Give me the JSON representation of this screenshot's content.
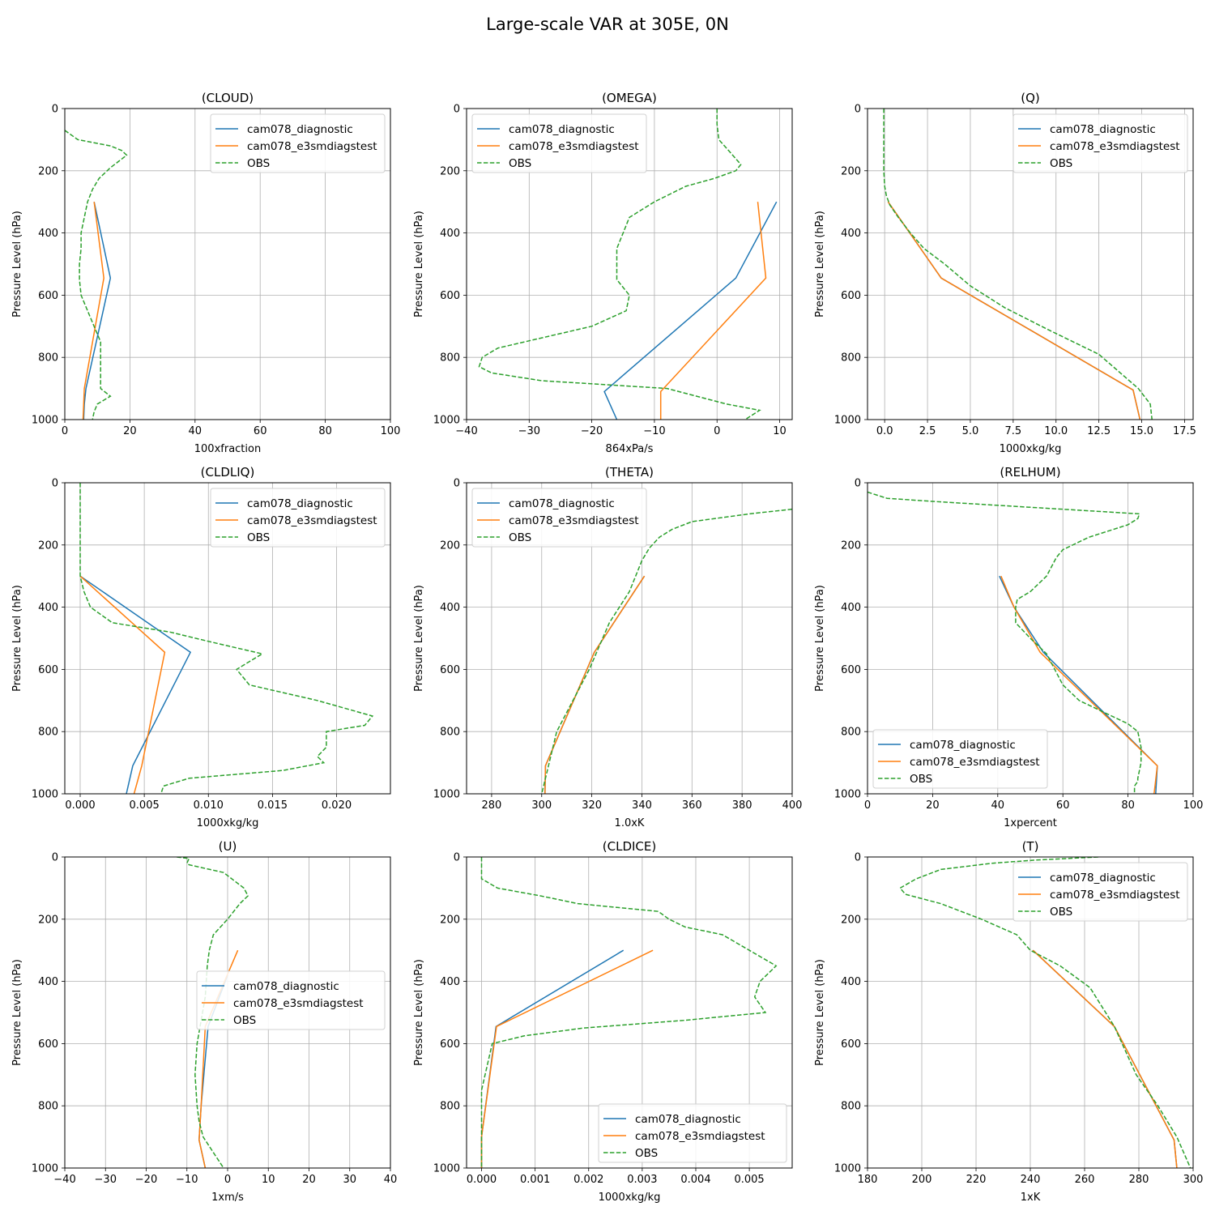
{
  "figure": {
    "title": "Large-scale VAR at 305E, 0N"
  },
  "colors": {
    "diag": "#1f77b4",
    "e3sm": "#ff7f0e",
    "obs": "#2ca02c"
  },
  "chart_data": [
    {
      "type": "line",
      "title": "(CLOUD)",
      "xlabel": "100xfraction",
      "ylabel": "Pressure Level (hPa)",
      "xlim": [
        0,
        100
      ],
      "ylim": [
        1000,
        0
      ],
      "xticks": [
        0,
        20,
        40,
        60,
        80,
        100
      ],
      "xtick_labels": [
        "0",
        "20",
        "40",
        "60",
        "80",
        "100"
      ],
      "yticks": [
        0,
        200,
        400,
        600,
        800,
        1000
      ],
      "grid": true,
      "legend": "upper right",
      "series": [
        {
          "name": "cam078_diagnostic",
          "color": "diag",
          "dashed": false,
          "x": [
            9,
            14,
            6.5,
            6,
            5.8
          ],
          "y": [
            300,
            545,
            900,
            950,
            1000
          ]
        },
        {
          "name": "cam078_e3smdiagstest",
          "color": "e3sm",
          "dashed": false,
          "x": [
            9,
            12,
            6,
            5.8,
            5.6
          ],
          "y": [
            300,
            545,
            900,
            950,
            1000
          ]
        },
        {
          "name": "OBS",
          "color": "obs",
          "dashed": true,
          "x": [
            0,
            4,
            14,
            17.5,
            19,
            14,
            10.5,
            8.5,
            7,
            6,
            5,
            5,
            4.5,
            4.5,
            5,
            7,
            11,
            11,
            11,
            14,
            10,
            9,
            8.5
          ],
          "y": [
            70,
            100,
            120,
            135,
            150,
            190,
            225,
            260,
            300,
            350,
            400,
            450,
            500,
            550,
            600,
            650,
            750,
            800,
            900,
            925,
            950,
            975,
            1000
          ]
        }
      ]
    },
    {
      "type": "line",
      "title": "(OMEGA)",
      "xlabel": "864xPa/s",
      "ylabel": "Pressure Level (hPa)",
      "xlim": [
        -40,
        12
      ],
      "ylim": [
        1000,
        0
      ],
      "xticks": [
        -40,
        -30,
        -20,
        -10,
        0,
        10
      ],
      "xtick_labels": [
        "−40",
        "−30",
        "−20",
        "−10",
        "0",
        "10"
      ],
      "yticks": [
        0,
        200,
        400,
        600,
        800,
        1000
      ],
      "grid": true,
      "legend": "upper left",
      "series": [
        {
          "name": "cam078_diagnostic",
          "color": "diag",
          "dashed": false,
          "x": [
            9.5,
            3,
            -18,
            -16
          ],
          "y": [
            300,
            545,
            910,
            1000
          ]
        },
        {
          "name": "cam078_e3smdiagstest",
          "color": "e3sm",
          "dashed": false,
          "x": [
            6.5,
            7.8,
            -9,
            -9
          ],
          "y": [
            300,
            545,
            910,
            1000
          ]
        },
        {
          "name": "OBS",
          "color": "obs",
          "dashed": true,
          "x": [
            0,
            0,
            0.3,
            2.5,
            3.8,
            3,
            -0.5,
            -5,
            -10,
            -14,
            -15,
            -16,
            -16,
            -16,
            -14,
            -14.5,
            -20,
            -35,
            -37.5,
            -38,
            -36,
            -28,
            -8,
            1.5,
            6.8,
            4.5
          ],
          "y": [
            0,
            50,
            100,
            150,
            180,
            200,
            225,
            250,
            300,
            350,
            400,
            450,
            500,
            550,
            600,
            650,
            700,
            770,
            800,
            830,
            850,
            875,
            900,
            950,
            970,
            1000
          ]
        }
      ]
    },
    {
      "type": "line",
      "title": "(Q)",
      "xlabel": "1000xkg/kg",
      "ylabel": "Pressure Level (hPa)",
      "xlim": [
        -1,
        18
      ],
      "ylim": [
        1000,
        0
      ],
      "xticks": [
        0,
        2.5,
        5,
        7.5,
        10,
        12.5,
        15,
        17.5
      ],
      "xtick_labels": [
        "0.0",
        "2.5",
        "5.0",
        "7.5",
        "10.0",
        "12.5",
        "15.0",
        "17.5"
      ],
      "yticks": [
        0,
        200,
        400,
        600,
        800,
        1000
      ],
      "grid": true,
      "legend": "upper right",
      "series": [
        {
          "name": "cam078_diagnostic",
          "color": "diag",
          "dashed": false,
          "x": [
            0.2,
            3.3,
            14.5,
            14.9
          ],
          "y": [
            300,
            545,
            905,
            1000
          ]
        },
        {
          "name": "cam078_e3smdiagstest",
          "color": "e3sm",
          "dashed": false,
          "x": [
            0.2,
            3.3,
            14.5,
            14.9
          ],
          "y": [
            300,
            545,
            905,
            1000
          ]
        },
        {
          "name": "OBS",
          "color": "obs",
          "dashed": true,
          "x": [
            -0.05,
            -0.05,
            -0.05,
            0,
            0.1,
            0.3,
            0.8,
            1.5,
            2.3,
            3.5,
            5,
            7,
            9.5,
            12.5,
            14.8,
            15.5,
            15.6
          ],
          "y": [
            0,
            100,
            200,
            250,
            280,
            310,
            350,
            400,
            450,
            500,
            570,
            640,
            710,
            790,
            900,
            950,
            1000
          ]
        }
      ]
    },
    {
      "type": "line",
      "title": "(CLDLIQ)",
      "xlabel": "1000xkg/kg",
      "ylabel": "Pressure Level (hPa)",
      "xlim": [
        -0.0012,
        0.0242
      ],
      "ylim": [
        1000,
        0
      ],
      "xticks": [
        0,
        0.005,
        0.01,
        0.015,
        0.02
      ],
      "xtick_labels": [
        "0.000",
        "0.005",
        "0.010",
        "0.015",
        "0.020"
      ],
      "yticks": [
        0,
        200,
        400,
        600,
        800,
        1000
      ],
      "grid": true,
      "legend": "upper right",
      "series": [
        {
          "name": "cam078_diagnostic",
          "color": "diag",
          "dashed": false,
          "x": [
            0,
            0.0086,
            0.0041,
            0.0036
          ],
          "y": [
            300,
            545,
            910,
            1000
          ]
        },
        {
          "name": "cam078_e3smdiagstest",
          "color": "e3sm",
          "dashed": false,
          "x": [
            0,
            0.0066,
            0.0048,
            0.0042
          ],
          "y": [
            300,
            545,
            910,
            1000
          ]
        },
        {
          "name": "OBS",
          "color": "obs",
          "dashed": true,
          "x": [
            0,
            0,
            0,
            0,
            0.0003,
            0.0008,
            0.0025,
            0.007,
            0.01,
            0.0142,
            0.0122,
            0.0132,
            0.0185,
            0.0228,
            0.0222,
            0.0192,
            0.0192,
            0.0185,
            0.019,
            0.0158,
            0.0085,
            0.0065,
            0.0063
          ],
          "y": [
            0,
            100,
            200,
            300,
            350,
            400,
            450,
            480,
            510,
            550,
            600,
            650,
            700,
            750,
            780,
            800,
            850,
            880,
            900,
            925,
            950,
            975,
            1000
          ]
        }
      ]
    },
    {
      "type": "line",
      "title": "(THETA)",
      "xlabel": "1.0xK",
      "ylabel": "Pressure Level (hPa)",
      "xlim": [
        270,
        400
      ],
      "ylim": [
        1000,
        0
      ],
      "xticks": [
        280,
        300,
        320,
        340,
        360,
        380,
        400
      ],
      "xtick_labels": [
        "280",
        "300",
        "320",
        "340",
        "360",
        "380",
        "400"
      ],
      "yticks": [
        0,
        200,
        400,
        600,
        800,
        1000
      ],
      "grid": true,
      "legend": "upper left",
      "series": [
        {
          "name": "cam078_diagnostic",
          "color": "diag",
          "dashed": false,
          "x": [
            341,
            321,
            301.5,
            301.3
          ],
          "y": [
            300,
            545,
            910,
            1000
          ]
        },
        {
          "name": "cam078_e3smdiagstest",
          "color": "e3sm",
          "dashed": false,
          "x": [
            341,
            321,
            301.5,
            301.3
          ],
          "y": [
            300,
            545,
            910,
            1000
          ]
        },
        {
          "name": "OBS",
          "color": "obs",
          "dashed": true,
          "x": [
            400,
            383,
            360,
            352,
            347,
            343,
            340,
            335,
            327,
            319,
            306,
            300
          ],
          "y": [
            85,
            100,
            125,
            150,
            175,
            210,
            250,
            350,
            450,
            600,
            800,
            1000
          ]
        }
      ]
    },
    {
      "type": "line",
      "title": "(RELHUM)",
      "xlabel": "1xpercent",
      "ylabel": "Pressure Level (hPa)",
      "xlim": [
        0,
        100
      ],
      "ylim": [
        1000,
        0
      ],
      "xticks": [
        0,
        20,
        40,
        60,
        80,
        100
      ],
      "xtick_labels": [
        "0",
        "20",
        "40",
        "60",
        "80",
        "100"
      ],
      "yticks": [
        0,
        200,
        400,
        600,
        800,
        1000
      ],
      "grid": true,
      "legend": "lower left",
      "series": [
        {
          "name": "cam078_diagnostic",
          "color": "diag",
          "dashed": false,
          "x": [
            40.5,
            45,
            54,
            89,
            88.5
          ],
          "y": [
            300,
            400,
            545,
            910,
            1000
          ]
        },
        {
          "name": "cam078_e3smdiagstest",
          "color": "e3sm",
          "dashed": false,
          "x": [
            41,
            45,
            53,
            89,
            88
          ],
          "y": [
            300,
            400,
            545,
            910,
            1000
          ]
        },
        {
          "name": "OBS",
          "color": "obs",
          "dashed": true,
          "x": [
            0,
            3,
            6,
            20,
            83.5,
            83,
            80,
            68,
            60,
            58,
            55,
            50,
            46,
            45.5,
            45.5,
            50,
            55,
            60,
            65,
            75,
            80,
            83,
            84,
            84,
            83,
            83,
            82,
            82
          ],
          "y": [
            30,
            40,
            50,
            60,
            100,
            115,
            135,
            175,
            215,
            240,
            300,
            350,
            375,
            400,
            450,
            500,
            550,
            650,
            700,
            750,
            775,
            800,
            850,
            900,
            950,
            960,
            975,
            1000
          ]
        }
      ]
    },
    {
      "type": "line",
      "title": "(U)",
      "xlabel": "1xm/s",
      "ylabel": "Pressure Level (hPa)",
      "xlim": [
        -40,
        40
      ],
      "ylim": [
        1000,
        0
      ],
      "xticks": [
        -40,
        -30,
        -20,
        -10,
        0,
        10,
        20,
        30,
        40
      ],
      "xtick_labels": [
        "−40",
        "−30",
        "−20",
        "−10",
        "0",
        "10",
        "20",
        "30",
        "40"
      ],
      "yticks": [
        0,
        200,
        400,
        600,
        800,
        1000
      ],
      "grid": true,
      "legend": "center right",
      "series": [
        {
          "name": "cam078_diagnostic",
          "color": "diag",
          "dashed": false,
          "x": [
            0,
            -4.8,
            -6.5,
            -7,
            -5.5
          ],
          "y": [
            380,
            545,
            800,
            910,
            1000
          ]
        },
        {
          "name": "cam078_e3smdiagstest",
          "color": "e3sm",
          "dashed": false,
          "x": [
            2.5,
            -5.5,
            -6.5,
            -7,
            -5.5
          ],
          "y": [
            300,
            545,
            800,
            910,
            1000
          ]
        },
        {
          "name": "OBS",
          "color": "obs",
          "dashed": true,
          "x": [
            -12.5,
            -9.5,
            -10,
            -9.5,
            -1,
            4,
            5,
            3,
            0,
            -3.5,
            -4.5,
            -5,
            -5.5,
            -7.5,
            -8,
            -7.5,
            -7,
            -6,
            -3.5,
            -1
          ],
          "y": [
            0,
            5,
            20,
            25,
            50,
            100,
            125,
            150,
            200,
            250,
            300,
            350,
            450,
            600,
            700,
            800,
            850,
            900,
            950,
            1000
          ]
        }
      ]
    },
    {
      "type": "line",
      "title": "(CLDICE)",
      "xlabel": "1000xkg/kg",
      "ylabel": "Pressure Level (hPa)",
      "xlim": [
        -0.00028,
        0.0058
      ],
      "ylim": [
        1000,
        0
      ],
      "xticks": [
        0,
        0.001,
        0.002,
        0.003,
        0.004,
        0.005
      ],
      "xtick_labels": [
        "0.000",
        "0.001",
        "0.002",
        "0.003",
        "0.004",
        "0.005"
      ],
      "yticks": [
        0,
        200,
        400,
        600,
        800,
        1000
      ],
      "grid": true,
      "legend": "lower right",
      "series": [
        {
          "name": "cam078_diagnostic",
          "color": "diag",
          "dashed": false,
          "x": [
            0.00265,
            0.00027,
            0,
            0
          ],
          "y": [
            300,
            545,
            900,
            1000
          ]
        },
        {
          "name": "cam078_e3smdiagstest",
          "color": "e3sm",
          "dashed": false,
          "x": [
            0.0032,
            0.00028,
            0,
            0
          ],
          "y": [
            300,
            545,
            900,
            1000
          ]
        },
        {
          "name": "OBS",
          "color": "obs",
          "dashed": true,
          "x": [
            0,
            0,
            0.0001,
            0.0003,
            0.0011,
            0.0018,
            0.0033,
            0.0035,
            0.0038,
            0.0045,
            0.005,
            0.0055,
            0.0052,
            0.0051,
            0.0052,
            0.0053,
            0.0038,
            0.0019,
            0.0008,
            0.0002,
            0,
            0,
            0
          ],
          "y": [
            0,
            70,
            80,
            100,
            125,
            150,
            175,
            200,
            225,
            250,
            300,
            350,
            400,
            450,
            475,
            500,
            525,
            550,
            575,
            600,
            750,
            900,
            1000
          ]
        }
      ]
    },
    {
      "type": "line",
      "title": "(T)",
      "xlabel": "1xK",
      "ylabel": "Pressure Level (hPa)",
      "xlim": [
        180,
        300
      ],
      "ylim": [
        1000,
        0
      ],
      "xticks": [
        180,
        200,
        220,
        240,
        260,
        280,
        300
      ],
      "xtick_labels": [
        "180",
        "200",
        "220",
        "240",
        "260",
        "280",
        "300"
      ],
      "yticks": [
        0,
        200,
        400,
        600,
        800,
        1000
      ],
      "grid": true,
      "legend": "upper right",
      "series": [
        {
          "name": "cam078_diagnostic",
          "color": "diag",
          "dashed": false,
          "x": [
            241,
            271,
            293,
            294
          ],
          "y": [
            300,
            545,
            910,
            1000
          ]
        },
        {
          "name": "cam078_e3smdiagstest",
          "color": "e3sm",
          "dashed": false,
          "x": [
            241,
            271,
            293,
            294
          ],
          "y": [
            300,
            545,
            910,
            1000
          ]
        },
        {
          "name": "OBS",
          "color": "obs",
          "dashed": true,
          "x": [
            265,
            242,
            226,
            207,
            198,
            192,
            194,
            207,
            222,
            235,
            240,
            251,
            262,
            271,
            279,
            287,
            294,
            299
          ],
          "y": [
            0,
            10,
            20,
            40,
            70,
            100,
            120,
            150,
            200,
            250,
            300,
            350,
            420,
            545,
            700,
            800,
            900,
            1000
          ]
        }
      ]
    }
  ]
}
